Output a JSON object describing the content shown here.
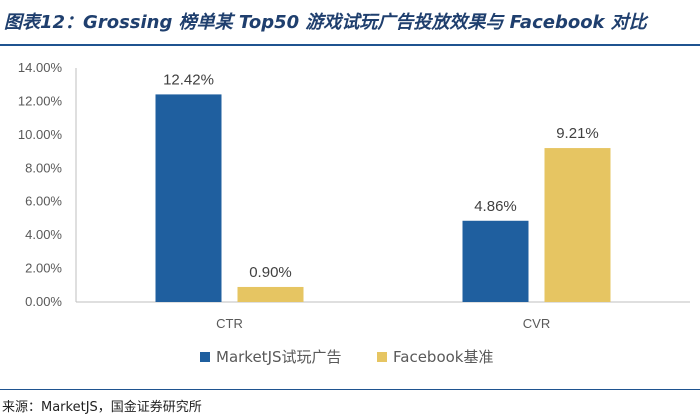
{
  "figure": {
    "title": "图表12：Grossing 榜单某 Top50 游戏试玩广告投放效果与 Facebook 对比",
    "source": "来源：MarketJS，国金证券研究所"
  },
  "colors": {
    "series1": "#1f5f9f",
    "series2": "#e6c562",
    "axis": "#bfbfbf",
    "text": "#595959",
    "label": "#404040"
  },
  "chart_data": {
    "type": "bar",
    "categories": [
      "CTR",
      "CVR"
    ],
    "series": [
      {
        "name": "MarketJS试玩广告",
        "values": [
          12.42,
          4.86
        ],
        "labels": [
          "12.42%",
          "4.86%"
        ]
      },
      {
        "name": "Facebook基准",
        "values": [
          0.9,
          9.21
        ],
        "labels": [
          "0.90%",
          "9.21%"
        ]
      }
    ],
    "ylim": [
      0,
      14
    ],
    "yticks": [
      0,
      2,
      4,
      6,
      8,
      10,
      12,
      14
    ],
    "ytick_labels": [
      "0.00%",
      "2.00%",
      "4.00%",
      "6.00%",
      "8.00%",
      "10.00%",
      "12.00%",
      "14.00%"
    ],
    "grid": false,
    "legend": "bottom-center"
  }
}
